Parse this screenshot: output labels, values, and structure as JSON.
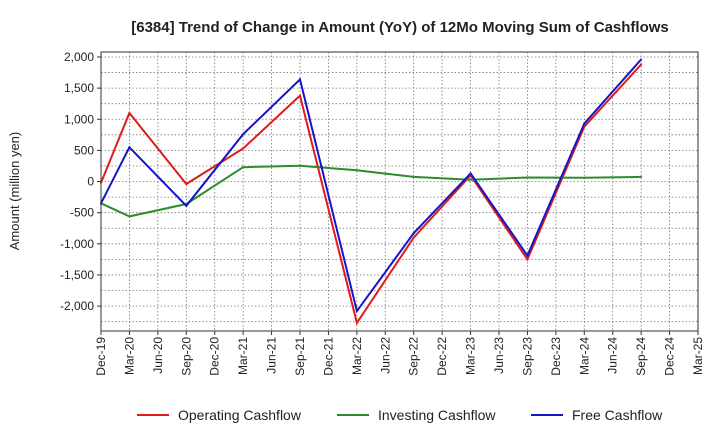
{
  "chart_data": {
    "type": "line",
    "title": "[6384]  Trend of Change in Amount (YoY) of 12Mo Moving Sum of Cashflows",
    "xlabel": "",
    "ylabel": "Amount (million yen)",
    "ylim": [
      -2400,
      2080
    ],
    "yticks": [
      2000,
      1500,
      1000,
      500,
      0,
      -500,
      -1000,
      -1500,
      -2000
    ],
    "ytick_labels": [
      "2,000",
      "1,500",
      "1,000",
      "500",
      "0",
      "-500",
      "-1,000",
      "-1,500",
      "-2,000"
    ],
    "categories": [
      "Dec-19",
      "Mar-20",
      "Jun-20",
      "Sep-20",
      "Dec-20",
      "Mar-21",
      "Jun-21",
      "Sep-21",
      "Dec-21",
      "Mar-22",
      "Jun-22",
      "Sep-22",
      "Dec-22",
      "Mar-23",
      "Jun-23",
      "Sep-23",
      "Dec-23",
      "Mar-24",
      "Jun-24",
      "Sep-24",
      "Dec-24",
      "Mar-25"
    ],
    "grid": true,
    "legend_position": "bottom",
    "series": [
      {
        "name": "Operating Cashflow",
        "color": "#e01b1b",
        "values": [
          -20,
          1100,
          null,
          -40,
          null,
          530,
          null,
          1380,
          null,
          -2270,
          null,
          -900,
          null,
          100,
          null,
          -1250,
          null,
          880,
          null,
          1880,
          null,
          null
        ]
      },
      {
        "name": "Investing Cashflow",
        "color": "#2e8b2e",
        "values": [
          -350,
          -560,
          null,
          -360,
          null,
          230,
          null,
          255,
          null,
          180,
          null,
          75,
          null,
          30,
          null,
          65,
          null,
          60,
          null,
          75,
          null,
          null
        ]
      },
      {
        "name": "Free Cashflow",
        "color": "#1515c8",
        "values": [
          -350,
          550,
          null,
          -390,
          null,
          760,
          null,
          1640,
          null,
          -2080,
          null,
          -830,
          null,
          130,
          null,
          -1190,
          null,
          930,
          null,
          1960,
          null,
          null
        ]
      }
    ]
  }
}
